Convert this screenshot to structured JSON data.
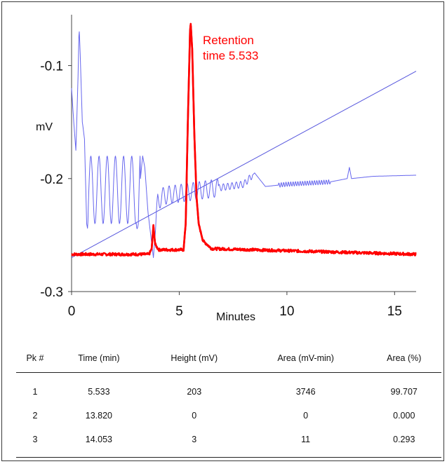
{
  "chart_data": {
    "type": "line",
    "xlabel": "Minutes",
    "ylabel": "mV",
    "xlim": [
      0,
      16
    ],
    "ylim": [
      -0.3,
      -0.055
    ],
    "xticks": [
      0,
      5,
      10,
      15
    ],
    "yticks": [
      -0.1,
      -0.2,
      -0.3
    ],
    "annotation": {
      "text_lines": [
        "Retention",
        "time 5.533"
      ],
      "color": "#ff0000",
      "x": 6.2,
      "y": -0.09
    },
    "series": [
      {
        "color": "#ff0000",
        "points": [
          [
            0,
            -0.267
          ],
          [
            3.6,
            -0.267
          ],
          [
            3.72,
            -0.262
          ],
          [
            3.8,
            -0.242
          ],
          [
            3.88,
            -0.258
          ],
          [
            3.97,
            -0.261
          ],
          [
            4.05,
            -0.263
          ],
          [
            5.2,
            -0.263
          ],
          [
            5.3,
            -0.24
          ],
          [
            5.4,
            -0.15
          ],
          [
            5.5,
            -0.07
          ],
          [
            5.533,
            -0.063
          ],
          [
            5.6,
            -0.085
          ],
          [
            5.7,
            -0.16
          ],
          [
            5.8,
            -0.215
          ],
          [
            5.9,
            -0.24
          ],
          [
            6.1,
            -0.255
          ],
          [
            6.5,
            -0.262
          ],
          [
            16,
            -0.267
          ]
        ],
        "noise": 0.0012
      },
      {
        "color": "#6666ee",
        "points": [
          [
            0,
            -0.12
          ],
          [
            0.1,
            -0.15
          ],
          [
            0.2,
            -0.175
          ],
          [
            0.3,
            -0.11
          ],
          [
            0.35,
            -0.065
          ],
          [
            0.4,
            -0.09
          ],
          [
            0.5,
            -0.15
          ],
          [
            0.6,
            -0.165
          ],
          [
            0.7,
            -0.24
          ],
          [
            0.75,
            -0.245
          ],
          [
            0.8,
            -0.21
          ],
          [
            1.0,
            -0.21
          ],
          [
            3.0,
            -0.21
          ],
          [
            3.1,
            -0.25
          ],
          [
            3.2,
            -0.2
          ],
          [
            3.3,
            -0.18
          ],
          [
            3.4,
            -0.19
          ],
          [
            3.55,
            -0.23
          ],
          [
            3.8,
            -0.27
          ],
          [
            4.0,
            -0.22
          ],
          [
            4.3,
            -0.215
          ],
          [
            8.0,
            -0.205
          ],
          [
            8.5,
            -0.195
          ],
          [
            9.0,
            -0.207
          ],
          [
            10,
            -0.205
          ],
          [
            12,
            -0.203
          ],
          [
            12.8,
            -0.2
          ],
          [
            12.9,
            -0.19
          ],
          [
            13,
            -0.2
          ],
          [
            14,
            -0.198
          ],
          [
            16,
            -0.197
          ]
        ],
        "oscillations": [
          {
            "x0": 0.8,
            "x1": 3.2,
            "period": 0.38,
            "amp": 0.03
          },
          {
            "x0": 3.9,
            "x1": 6.8,
            "period": 0.28,
            "amp": 0.008
          },
          {
            "x0": 6.8,
            "x1": 8.4,
            "period": 0.2,
            "amp": 0.003
          },
          {
            "x0": 9.6,
            "x1": 12.0,
            "period": 0.11,
            "amp": 0.002
          }
        ]
      },
      {
        "color": "#5555dd",
        "points": [
          [
            0,
            -0.27
          ],
          [
            16,
            -0.105
          ]
        ]
      }
    ]
  },
  "table": {
    "columns": [
      "Pk #",
      "Time (min)",
      "Height (mV)",
      "Area (mV-min)",
      "Area (%)"
    ],
    "rows": [
      [
        "1",
        "5.533",
        "203",
        "3746",
        "99.707"
      ],
      [
        "2",
        "13.820",
        "0",
        "0",
        "0.000"
      ],
      [
        "3",
        "14.053",
        "3",
        "11",
        "0.293"
      ]
    ]
  }
}
